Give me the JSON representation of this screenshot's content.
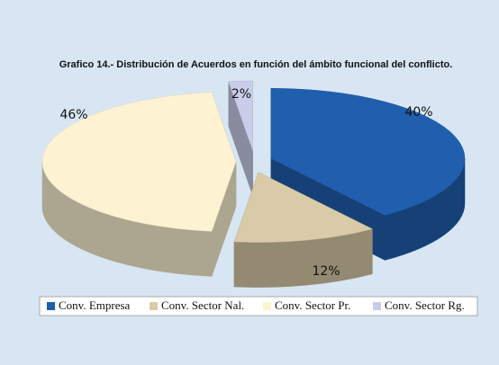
{
  "chart_data": {
    "type": "pie3d",
    "title": "Grafico 14.- Distribución de Acuerdos en función del ámbito funcional del conflicto.",
    "categories": [
      "Conv. Empresa",
      "Conv. Sector Nal.",
      "Conv. Sector Pr.",
      "Conv. Sector Rg."
    ],
    "values": [
      40,
      12,
      46,
      2
    ],
    "value_labels": [
      "40%",
      "12%",
      "46%",
      "2%"
    ],
    "colors": [
      "#1f5fae",
      "#d9cba8",
      "#fdf2d2",
      "#c9cdea"
    ],
    "legend": "bottom"
  }
}
